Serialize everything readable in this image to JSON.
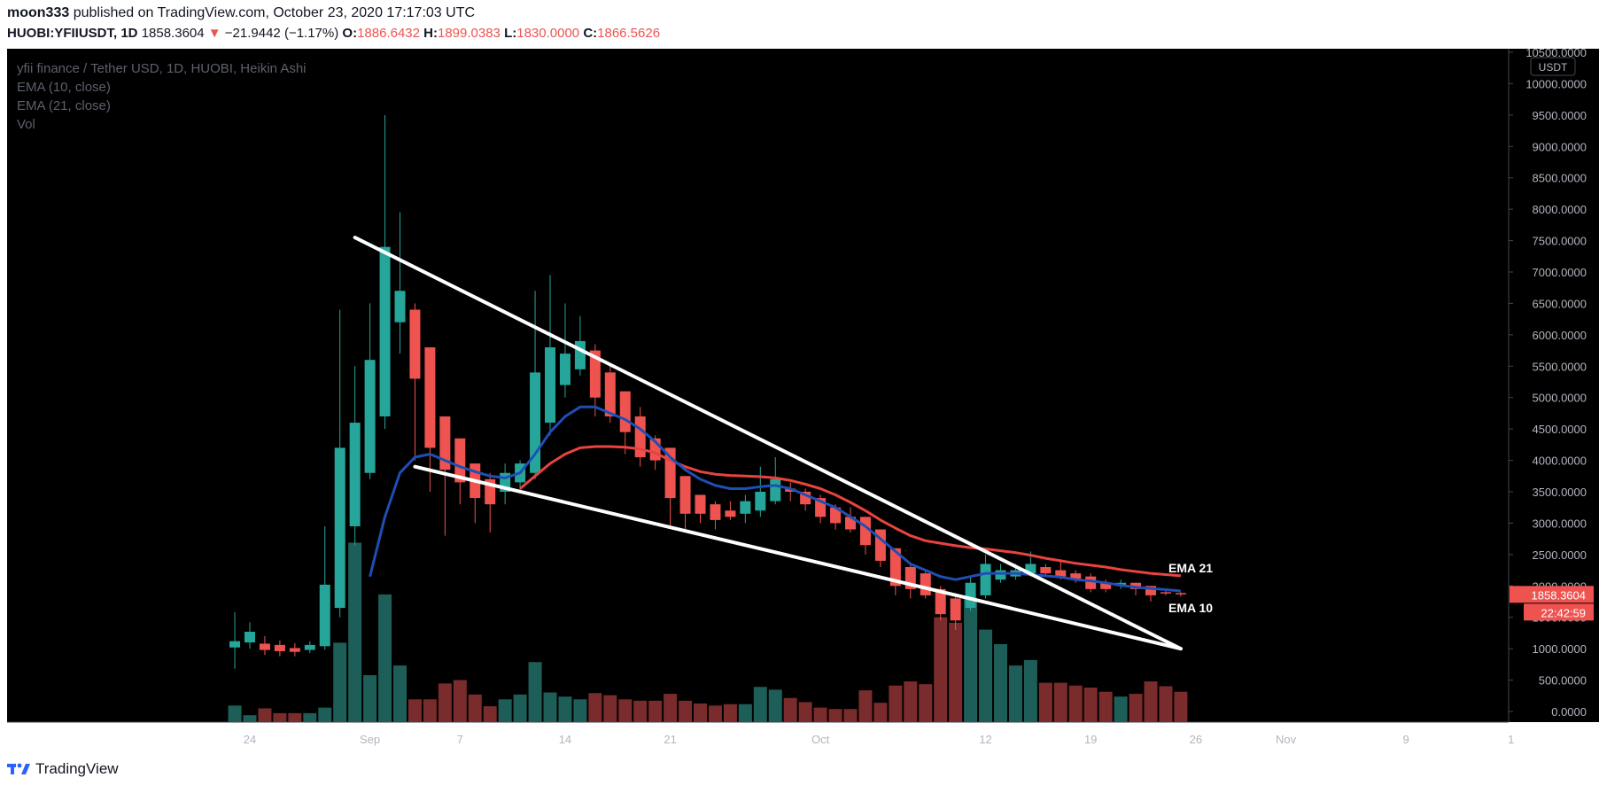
{
  "header": {
    "author": "moon333",
    "published_text": "published on TradingView.com, October 23, 2020 17:17:03 UTC",
    "symbol": "HUOBI:YFIIUSDT, 1D",
    "last": "1858.3604",
    "change_arrow": "▼",
    "change": "−21.9442 (−1.17%)",
    "o_label": "O:",
    "o": "1886.6432",
    "h_label": "H:",
    "h": "1899.0383",
    "l_label": "L:",
    "l": "1830.0000",
    "c_label": "C:",
    "c": "1866.5626"
  },
  "legend": {
    "title": "yfii finance / Tether USD, 1D, HUOBI, Heikin Ashi",
    "ema10": "EMA (10, close)",
    "ema21": "EMA (21, close)",
    "vol": "Vol"
  },
  "footer": {
    "brand": "TradingView"
  },
  "colors": {
    "bg": "#000000",
    "up": "#26a69a",
    "down": "#ef5350",
    "vol_up": "#1e5e58",
    "vol_down": "#7a2b2b",
    "ema10": "#1f4eb4",
    "ema21": "#e8433f",
    "axis_text": "#b2b5be",
    "trendline": "#ffffff"
  },
  "chart_data": {
    "type": "candlestick",
    "chart_style": "Heikin Ashi",
    "y_axis": {
      "unit": "USDT",
      "ylim": [
        0,
        10500
      ],
      "ticks": [
        0,
        500,
        1000,
        1500,
        2000,
        2500,
        3000,
        3500,
        4000,
        4500,
        5000,
        5500,
        6000,
        6500,
        7000,
        7500,
        8000,
        8500,
        9000,
        9500,
        10000,
        10500
      ],
      "tick_labels": [
        "0.0000",
        "500.0000",
        "1000.0000",
        "1500.0000",
        "2000.0000",
        "2500.0000",
        "3000.0000",
        "3500.0000",
        "4000.0000",
        "4500.0000",
        "5000.0000",
        "5500.0000",
        "6000.0000",
        "6500.0000",
        "7000.0000",
        "7500.0000",
        "8000.0000",
        "8500.0000",
        "9000.0000",
        "9500.0000",
        "10000.0000",
        "10500.0000"
      ]
    },
    "x_axis": {
      "labels": [
        {
          "text": "24",
          "date": "2020-08-24"
        },
        {
          "text": "Sep",
          "date": "2020-09-01"
        },
        {
          "text": "7",
          "date": "2020-09-07"
        },
        {
          "text": "14",
          "date": "2020-09-14"
        },
        {
          "text": "21",
          "date": "2020-09-21"
        },
        {
          "text": "Oct",
          "date": "2020-10-01"
        },
        {
          "text": "12",
          "date": "2020-10-12"
        },
        {
          "text": "19",
          "date": "2020-10-19"
        },
        {
          "text": "26",
          "date": "2020-10-26"
        },
        {
          "text": "Nov",
          "date": "2020-11-01"
        },
        {
          "text": "9",
          "date": "2020-11-09"
        },
        {
          "text": "1",
          "date": "2020-11-16"
        }
      ]
    },
    "price_label": "1858.3604",
    "countdown_label": "22:42:59",
    "candles": [
      {
        "date": "2020-08-23",
        "o": 1020,
        "h": 1580,
        "l": 680,
        "c": 1120
      },
      {
        "date": "2020-08-24",
        "o": 1100,
        "h": 1420,
        "l": 1000,
        "c": 1270
      },
      {
        "date": "2020-08-25",
        "o": 1080,
        "h": 1200,
        "l": 900,
        "c": 980
      },
      {
        "date": "2020-08-26",
        "o": 1060,
        "h": 1130,
        "l": 880,
        "c": 960
      },
      {
        "date": "2020-08-27",
        "o": 1010,
        "h": 1090,
        "l": 880,
        "c": 950
      },
      {
        "date": "2020-08-28",
        "o": 980,
        "h": 1120,
        "l": 930,
        "c": 1060
      },
      {
        "date": "2020-08-29",
        "o": 1040,
        "h": 2950,
        "l": 980,
        "c": 2020
      },
      {
        "date": "2020-08-30",
        "o": 1650,
        "h": 6400,
        "l": 1500,
        "c": 4200
      },
      {
        "date": "2020-08-31",
        "o": 2950,
        "h": 5500,
        "l": 2650,
        "c": 4600
      },
      {
        "date": "2020-09-01",
        "o": 3800,
        "h": 6500,
        "l": 3700,
        "c": 5600
      },
      {
        "date": "2020-09-02",
        "o": 4700,
        "h": 9500,
        "l": 4500,
        "c": 7400
      },
      {
        "date": "2020-09-03",
        "o": 6200,
        "h": 7950,
        "l": 5700,
        "c": 6700
      },
      {
        "date": "2020-09-04",
        "o": 6400,
        "h": 6500,
        "l": 4000,
        "c": 5300
      },
      {
        "date": "2020-09-05",
        "o": 5800,
        "h": 5800,
        "l": 3500,
        "c": 4200
      },
      {
        "date": "2020-09-06",
        "o": 4700,
        "h": 4700,
        "l": 2800,
        "c": 3850
      },
      {
        "date": "2020-09-07",
        "o": 4350,
        "h": 4350,
        "l": 3300,
        "c": 3650
      },
      {
        "date": "2020-09-08",
        "o": 3950,
        "h": 3950,
        "l": 3000,
        "c": 3400
      },
      {
        "date": "2020-09-09",
        "o": 3700,
        "h": 3800,
        "l": 2850,
        "c": 3300
      },
      {
        "date": "2020-09-10",
        "o": 3500,
        "h": 3950,
        "l": 3300,
        "c": 3800
      },
      {
        "date": "2020-09-11",
        "o": 3650,
        "h": 4000,
        "l": 3500,
        "c": 3950
      },
      {
        "date": "2020-09-12",
        "o": 3800,
        "h": 6700,
        "l": 3700,
        "c": 5400
      },
      {
        "date": "2020-09-13",
        "o": 4600,
        "h": 6950,
        "l": 4400,
        "c": 5800
      },
      {
        "date": "2020-09-14",
        "o": 5200,
        "h": 6500,
        "l": 5000,
        "c": 5700
      },
      {
        "date": "2020-09-15",
        "o": 5450,
        "h": 6300,
        "l": 5350,
        "c": 5900
      },
      {
        "date": "2020-09-16",
        "o": 5750,
        "h": 5850,
        "l": 4700,
        "c": 5000
      },
      {
        "date": "2020-09-17",
        "o": 5400,
        "h": 5500,
        "l": 4600,
        "c": 4700
      },
      {
        "date": "2020-09-18",
        "o": 5100,
        "h": 5100,
        "l": 4100,
        "c": 4450
      },
      {
        "date": "2020-09-19",
        "o": 4700,
        "h": 4850,
        "l": 3900,
        "c": 4050
      },
      {
        "date": "2020-09-20",
        "o": 4350,
        "h": 4400,
        "l": 3850,
        "c": 4000
      },
      {
        "date": "2020-09-21",
        "o": 4200,
        "h": 4200,
        "l": 2950,
        "c": 3400
      },
      {
        "date": "2020-09-22",
        "o": 3750,
        "h": 3750,
        "l": 2900,
        "c": 3150
      },
      {
        "date": "2020-09-23",
        "o": 3450,
        "h": 3450,
        "l": 3000,
        "c": 3150
      },
      {
        "date": "2020-09-24",
        "o": 3300,
        "h": 3350,
        "l": 2900,
        "c": 3050
      },
      {
        "date": "2020-09-25",
        "o": 3200,
        "h": 3350,
        "l": 3050,
        "c": 3100
      },
      {
        "date": "2020-09-26",
        "o": 3150,
        "h": 3450,
        "l": 3000,
        "c": 3350
      },
      {
        "date": "2020-09-27",
        "o": 3200,
        "h": 3900,
        "l": 3100,
        "c": 3500
      },
      {
        "date": "2020-09-28",
        "o": 3350,
        "h": 4050,
        "l": 3300,
        "c": 3700
      },
      {
        "date": "2020-09-29",
        "o": 3550,
        "h": 3650,
        "l": 3350,
        "c": 3500
      },
      {
        "date": "2020-09-30",
        "o": 3500,
        "h": 3550,
        "l": 3200,
        "c": 3300
      },
      {
        "date": "2020-10-01",
        "o": 3400,
        "h": 3450,
        "l": 3000,
        "c": 3100
      },
      {
        "date": "2020-10-02",
        "o": 3250,
        "h": 3300,
        "l": 2900,
        "c": 3000
      },
      {
        "date": "2020-10-03",
        "o": 3100,
        "h": 3250,
        "l": 2850,
        "c": 2900
      },
      {
        "date": "2020-10-04",
        "o": 3100,
        "h": 3100,
        "l": 2500,
        "c": 2650
      },
      {
        "date": "2020-10-05",
        "o": 2900,
        "h": 2900,
        "l": 2300,
        "c": 2400
      },
      {
        "date": "2020-10-06",
        "o": 2600,
        "h": 2600,
        "l": 1850,
        "c": 2000
      },
      {
        "date": "2020-10-07",
        "o": 2300,
        "h": 2350,
        "l": 1800,
        "c": 1950
      },
      {
        "date": "2020-10-08",
        "o": 2200,
        "h": 2250,
        "l": 1800,
        "c": 1850
      },
      {
        "date": "2020-10-09",
        "o": 1950,
        "h": 2000,
        "l": 1450,
        "c": 1550
      },
      {
        "date": "2020-10-10",
        "o": 1800,
        "h": 1850,
        "l": 1300,
        "c": 1450
      },
      {
        "date": "2020-10-11",
        "o": 1650,
        "h": 2150,
        "l": 1600,
        "c": 2050
      },
      {
        "date": "2020-10-12",
        "o": 1850,
        "h": 2500,
        "l": 1800,
        "c": 2350
      },
      {
        "date": "2020-10-13",
        "o": 2100,
        "h": 2350,
        "l": 2050,
        "c": 2250
      },
      {
        "date": "2020-10-14",
        "o": 2150,
        "h": 2350,
        "l": 2100,
        "c": 2250
      },
      {
        "date": "2020-10-15",
        "o": 2200,
        "h": 2550,
        "l": 2150,
        "c": 2350
      },
      {
        "date": "2020-10-16",
        "o": 2300,
        "h": 2350,
        "l": 2150,
        "c": 2200
      },
      {
        "date": "2020-10-17",
        "o": 2250,
        "h": 2400,
        "l": 2100,
        "c": 2150
      },
      {
        "date": "2020-10-18",
        "o": 2200,
        "h": 2250,
        "l": 2050,
        "c": 2100
      },
      {
        "date": "2020-10-19",
        "o": 2150,
        "h": 2200,
        "l": 1900,
        "c": 1950
      },
      {
        "date": "2020-10-20",
        "o": 2050,
        "h": 2100,
        "l": 1900,
        "c": 1950
      },
      {
        "date": "2020-10-21",
        "o": 2000,
        "h": 2100,
        "l": 1950,
        "c": 2050
      },
      {
        "date": "2020-10-22",
        "o": 2050,
        "h": 2050,
        "l": 1850,
        "c": 1950
      },
      {
        "date": "2020-10-23",
        "o": 2000,
        "h": 2000,
        "l": 1750,
        "c": 1850
      },
      {
        "date": "2020-10-24",
        "o": 1900,
        "h": 1950,
        "l": 1850,
        "c": 1880
      },
      {
        "date": "2020-10-25",
        "o": 1886.64,
        "h": 1899.04,
        "l": 1830,
        "c": 1866.56
      }
    ],
    "volume": [
      240,
      100,
      200,
      130,
      130,
      130,
      210,
      1150,
      2600,
      680,
      1850,
      820,
      330,
      330,
      560,
      610,
      400,
      230,
      330,
      400,
      870,
      430,
      370,
      330,
      420,
      390,
      330,
      310,
      310,
      410,
      310,
      270,
      240,
      260,
      260,
      510,
      470,
      350,
      290,
      210,
      190,
      190,
      460,
      280,
      530,
      590,
      550,
      1520,
      1440,
      1800,
      1340,
      1130,
      820,
      900,
      570,
      570,
      530,
      500,
      440,
      370,
      410,
      590,
      520,
      440,
      60
    ],
    "volume_scale_max": 1900,
    "ema10": [
      {
        "date": "2020-09-01",
        "v": 2150
      },
      {
        "date": "2020-09-02",
        "v": 3100
      },
      {
        "date": "2020-09-03",
        "v": 3800
      },
      {
        "date": "2020-09-04",
        "v": 4050
      },
      {
        "date": "2020-09-05",
        "v": 4100
      },
      {
        "date": "2020-09-06",
        "v": 4000
      },
      {
        "date": "2020-09-07",
        "v": 3900
      },
      {
        "date": "2020-09-08",
        "v": 3820
      },
      {
        "date": "2020-09-09",
        "v": 3750
      },
      {
        "date": "2020-09-10",
        "v": 3720
      },
      {
        "date": "2020-09-11",
        "v": 3800
      },
      {
        "date": "2020-09-12",
        "v": 4100
      },
      {
        "date": "2020-09-13",
        "v": 4450
      },
      {
        "date": "2020-09-14",
        "v": 4700
      },
      {
        "date": "2020-09-15",
        "v": 4850
      },
      {
        "date": "2020-09-16",
        "v": 4850
      },
      {
        "date": "2020-09-17",
        "v": 4750
      },
      {
        "date": "2020-09-18",
        "v": 4650
      },
      {
        "date": "2020-09-19",
        "v": 4500
      },
      {
        "date": "2020-09-20",
        "v": 4300
      },
      {
        "date": "2020-09-21",
        "v": 4050
      },
      {
        "date": "2020-09-22",
        "v": 3850
      },
      {
        "date": "2020-09-23",
        "v": 3700
      },
      {
        "date": "2020-09-24",
        "v": 3600
      },
      {
        "date": "2020-09-25",
        "v": 3550
      },
      {
        "date": "2020-09-26",
        "v": 3550
      },
      {
        "date": "2020-09-27",
        "v": 3580
      },
      {
        "date": "2020-09-28",
        "v": 3600
      },
      {
        "date": "2020-09-29",
        "v": 3550
      },
      {
        "date": "2020-09-30",
        "v": 3450
      },
      {
        "date": "2020-10-01",
        "v": 3350
      },
      {
        "date": "2020-10-02",
        "v": 3250
      },
      {
        "date": "2020-10-03",
        "v": 3100
      },
      {
        "date": "2020-10-04",
        "v": 2950
      },
      {
        "date": "2020-10-05",
        "v": 2750
      },
      {
        "date": "2020-10-06",
        "v": 2550
      },
      {
        "date": "2020-10-07",
        "v": 2350
      },
      {
        "date": "2020-10-08",
        "v": 2250
      },
      {
        "date": "2020-10-09",
        "v": 2150
      },
      {
        "date": "2020-10-10",
        "v": 2100
      },
      {
        "date": "2020-10-11",
        "v": 2150
      },
      {
        "date": "2020-10-12",
        "v": 2200
      },
      {
        "date": "2020-10-13",
        "v": 2200
      },
      {
        "date": "2020-10-14",
        "v": 2200
      },
      {
        "date": "2020-10-15",
        "v": 2180
      },
      {
        "date": "2020-10-16",
        "v": 2160
      },
      {
        "date": "2020-10-17",
        "v": 2140
      },
      {
        "date": "2020-10-18",
        "v": 2100
      },
      {
        "date": "2020-10-19",
        "v": 2080
      },
      {
        "date": "2020-10-20",
        "v": 2050
      },
      {
        "date": "2020-10-21",
        "v": 2010
      },
      {
        "date": "2020-10-22",
        "v": 1980
      },
      {
        "date": "2020-10-23",
        "v": 1960
      },
      {
        "date": "2020-10-24",
        "v": 1940
      },
      {
        "date": "2020-10-25",
        "v": 1920
      }
    ],
    "ema21": [
      {
        "date": "2020-09-11",
        "v": 3550
      },
      {
        "date": "2020-09-12",
        "v": 3750
      },
      {
        "date": "2020-09-13",
        "v": 3950
      },
      {
        "date": "2020-09-14",
        "v": 4100
      },
      {
        "date": "2020-09-15",
        "v": 4200
      },
      {
        "date": "2020-09-16",
        "v": 4220
      },
      {
        "date": "2020-09-17",
        "v": 4220
      },
      {
        "date": "2020-09-18",
        "v": 4210
      },
      {
        "date": "2020-09-19",
        "v": 4180
      },
      {
        "date": "2020-09-20",
        "v": 4120
      },
      {
        "date": "2020-09-21",
        "v": 4000
      },
      {
        "date": "2020-09-22",
        "v": 3900
      },
      {
        "date": "2020-09-23",
        "v": 3820
      },
      {
        "date": "2020-09-24",
        "v": 3780
      },
      {
        "date": "2020-09-25",
        "v": 3760
      },
      {
        "date": "2020-09-26",
        "v": 3750
      },
      {
        "date": "2020-09-27",
        "v": 3740
      },
      {
        "date": "2020-09-28",
        "v": 3720
      },
      {
        "date": "2020-09-29",
        "v": 3680
      },
      {
        "date": "2020-09-30",
        "v": 3620
      },
      {
        "date": "2020-10-01",
        "v": 3550
      },
      {
        "date": "2020-10-02",
        "v": 3450
      },
      {
        "date": "2020-10-03",
        "v": 3330
      },
      {
        "date": "2020-10-04",
        "v": 3200
      },
      {
        "date": "2020-10-05",
        "v": 3050
      },
      {
        "date": "2020-10-06",
        "v": 2920
      },
      {
        "date": "2020-10-07",
        "v": 2800
      },
      {
        "date": "2020-10-08",
        "v": 2720
      },
      {
        "date": "2020-10-09",
        "v": 2680
      },
      {
        "date": "2020-10-10",
        "v": 2640
      },
      {
        "date": "2020-10-11",
        "v": 2610
      },
      {
        "date": "2020-10-12",
        "v": 2590
      },
      {
        "date": "2020-10-13",
        "v": 2560
      },
      {
        "date": "2020-10-14",
        "v": 2530
      },
      {
        "date": "2020-10-15",
        "v": 2490
      },
      {
        "date": "2020-10-16",
        "v": 2440
      },
      {
        "date": "2020-10-17",
        "v": 2400
      },
      {
        "date": "2020-10-18",
        "v": 2360
      },
      {
        "date": "2020-10-19",
        "v": 2330
      },
      {
        "date": "2020-10-20",
        "v": 2300
      },
      {
        "date": "2020-10-21",
        "v": 2260
      },
      {
        "date": "2020-10-22",
        "v": 2230
      },
      {
        "date": "2020-10-23",
        "v": 2200
      },
      {
        "date": "2020-10-24",
        "v": 2180
      },
      {
        "date": "2020-10-25",
        "v": 2160
      }
    ],
    "ema21_label": "EMA 21",
    "ema10_label": "EMA 10",
    "trendlines": [
      {
        "name": "upper",
        "p1": {
          "date": "2020-08-31",
          "price": 7550
        },
        "p2": {
          "date": "2020-10-25",
          "price": 1000
        }
      },
      {
        "name": "lower",
        "p1": {
          "date": "2020-09-04",
          "price": 3900
        },
        "p2": {
          "date": "2020-10-25",
          "price": 1000
        }
      }
    ]
  }
}
